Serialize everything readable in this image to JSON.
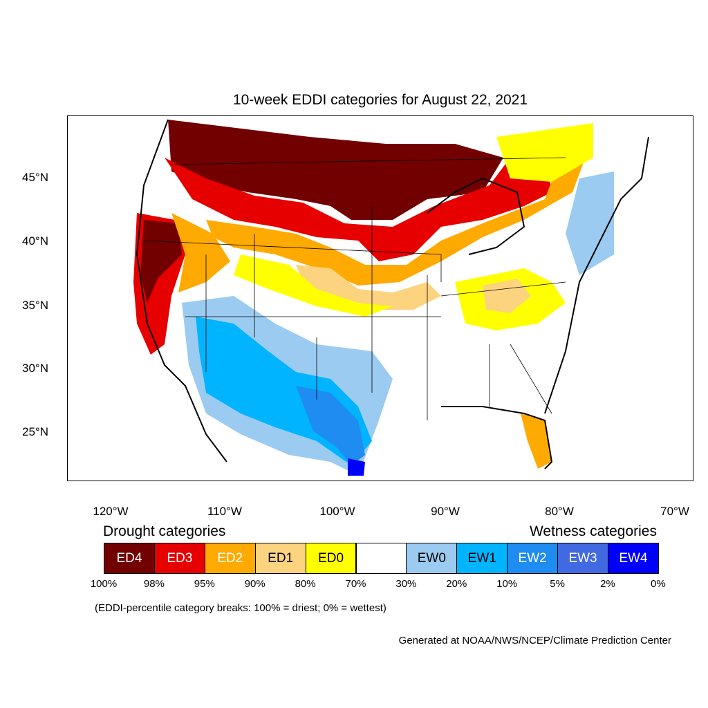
{
  "title": "10-week EDDI categories for August 22, 2021",
  "lat_labels": [
    "45°N",
    "40°N",
    "35°N",
    "30°N",
    "25°N"
  ],
  "lon_labels": [
    "120°W",
    "110°W",
    "100°W",
    "90°W",
    "80°W",
    "70°W"
  ],
  "legend": {
    "drought_heading": "Drought categories",
    "wetness_heading": "Wetness categories",
    "categories": [
      {
        "label": "ED4",
        "color": "#730000",
        "text_color": "#ffffff"
      },
      {
        "label": "ED3",
        "color": "#e60000",
        "text_color": "#ffffff"
      },
      {
        "label": "ED2",
        "color": "#ffaa00",
        "text_color": "#ffffff"
      },
      {
        "label": "ED1",
        "color": "#fcd37f",
        "text_color": "#000000"
      },
      {
        "label": "ED0",
        "color": "#ffff00",
        "text_color": "#000000"
      },
      {
        "label": "",
        "color": "#ffffff",
        "text_color": "#000000"
      },
      {
        "label": "EW0",
        "color": "#9bcbf0",
        "text_color": "#000000"
      },
      {
        "label": "EW1",
        "color": "#00b4ff",
        "text_color": "#000000"
      },
      {
        "label": "EW2",
        "color": "#1e8cf0",
        "text_color": "#ffffff"
      },
      {
        "label": "EW3",
        "color": "#4169e1",
        "text_color": "#ffffff"
      },
      {
        "label": "EW4",
        "color": "#0000ff",
        "text_color": "#ffffff"
      }
    ],
    "percentiles": [
      "100%",
      "98%",
      "95%",
      "90%",
      "80%",
      "70%",
      "30%",
      "20%",
      "10%",
      "5%",
      "2%",
      "0%"
    ]
  },
  "note": "(EDDI-percentile category breaks: 100% = driest; 0% = wettest)",
  "credit": "Generated at NOAA/NWS/NCEP/Climate Prediction Center"
}
